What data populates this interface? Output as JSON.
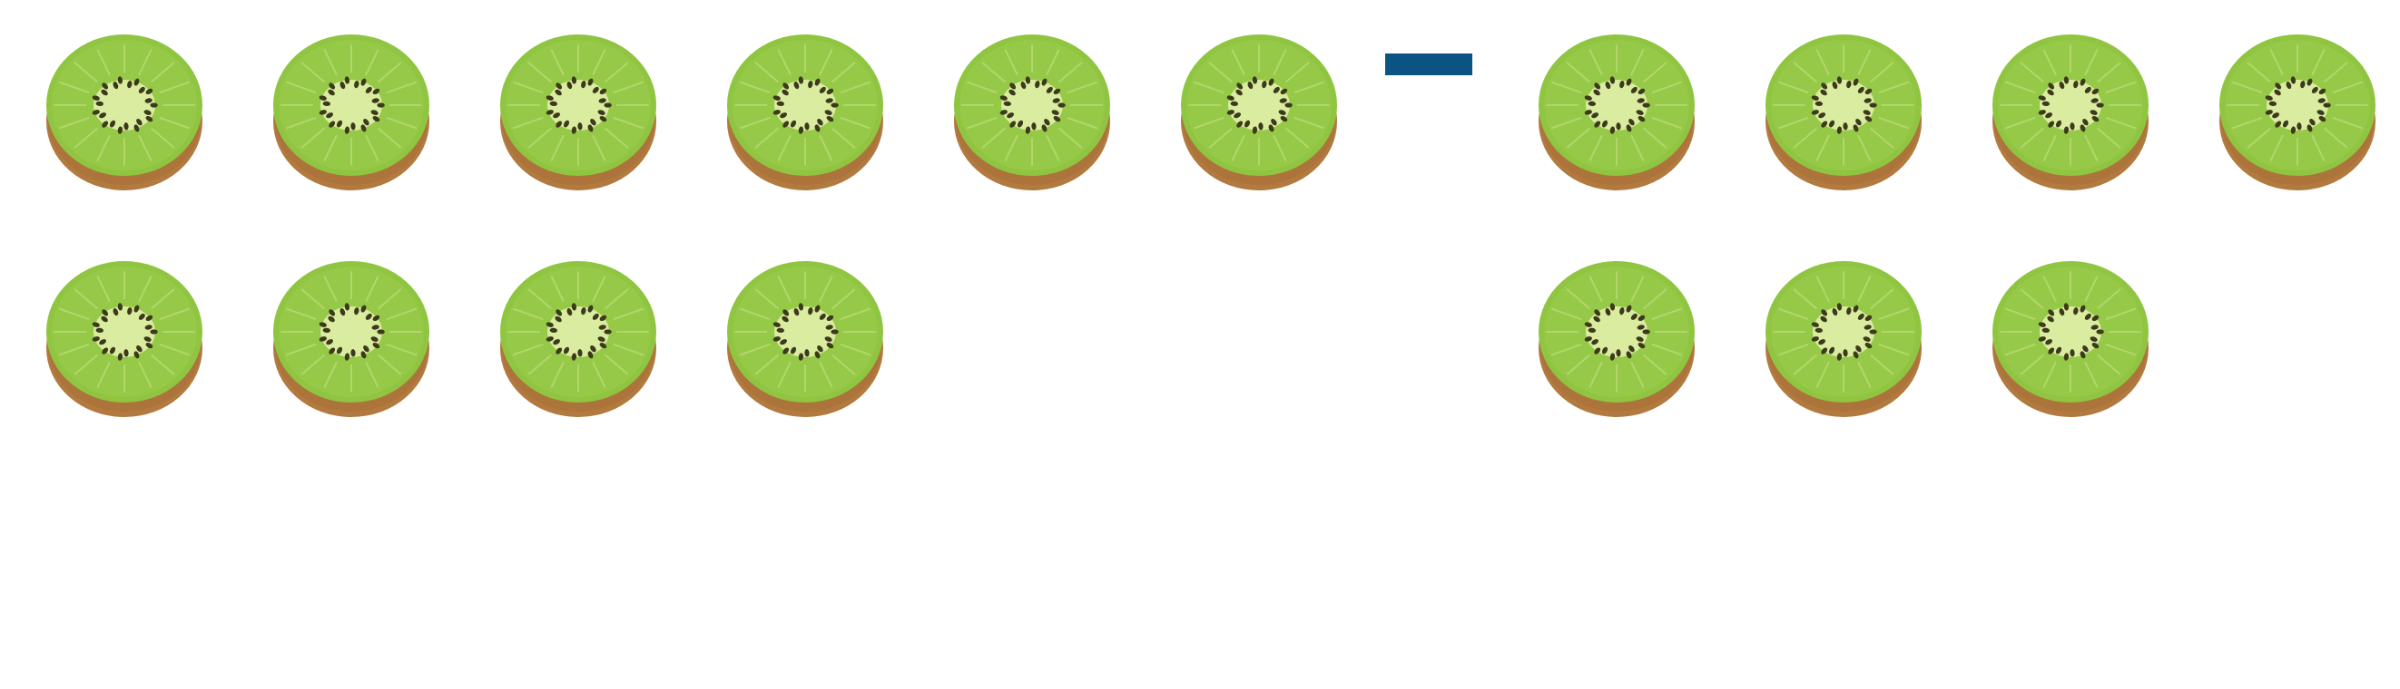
{
  "left_group": {
    "count": 10,
    "icon": "kiwi-slice-icon"
  },
  "operator": {
    "symbol": "minus",
    "icon": "minus-sign"
  },
  "right_group": {
    "count": 7,
    "icon": "kiwi-slice-icon"
  },
  "colors": {
    "minus": "#0b5382",
    "kiwi_flesh": "#8fc541",
    "kiwi_center": "#d9eca0",
    "kiwi_seed": "#3d3a1b",
    "kiwi_skin": "#b27a3f"
  }
}
